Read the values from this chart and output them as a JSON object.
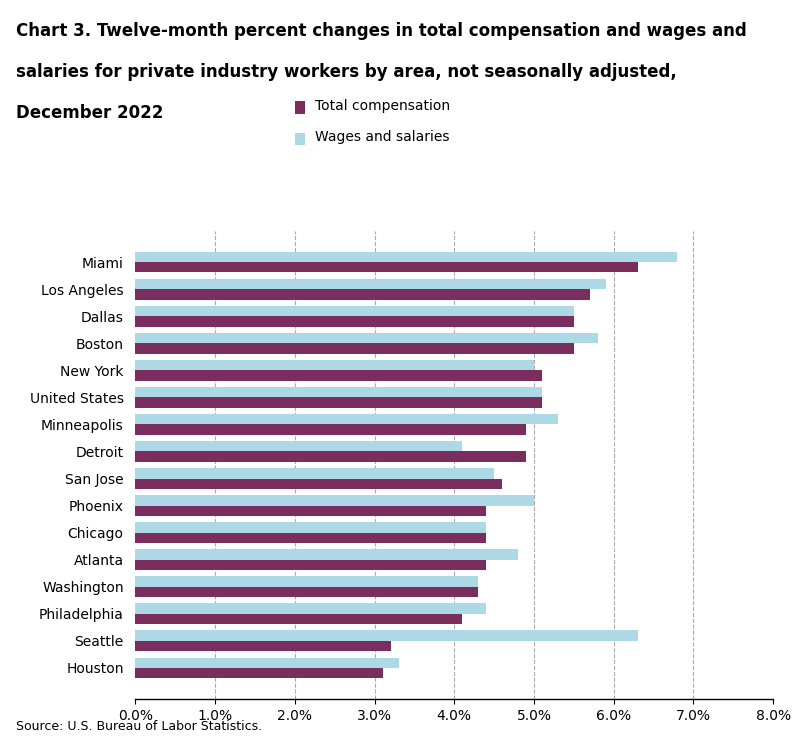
{
  "title_lines": [
    "Chart 3. Twelve-month percent changes in total compensation and wages and",
    "salaries for private industry workers by area, not seasonally adjusted,",
    "December 2022"
  ],
  "legend_labels": [
    "Total compensation",
    "Wages and salaries"
  ],
  "legend_colors": [
    "#7B2D5E",
    "#ADD8E6"
  ],
  "source": "Source: U.S. Bureau of Labor Statistics.",
  "categories": [
    "Miami",
    "Los Angeles",
    "Dallas",
    "Boston",
    "New York",
    "United States",
    "Minneapolis",
    "Detroit",
    "San Jose",
    "Phoenix",
    "Chicago",
    "Atlanta",
    "Washington",
    "Philadelphia",
    "Seattle",
    "Houston"
  ],
  "total_compensation": [
    6.3,
    5.7,
    5.5,
    5.5,
    5.1,
    5.1,
    4.9,
    4.9,
    4.6,
    4.4,
    4.4,
    4.4,
    4.3,
    4.1,
    3.2,
    3.1
  ],
  "wages_and_salaries": [
    6.8,
    5.9,
    5.5,
    5.8,
    5.0,
    5.1,
    5.3,
    4.1,
    4.5,
    5.0,
    4.4,
    4.8,
    4.3,
    4.4,
    6.3,
    3.3
  ],
  "xlim": [
    0.0,
    0.08
  ],
  "xticks": [
    0.0,
    0.01,
    0.02,
    0.03,
    0.04,
    0.05,
    0.06,
    0.07,
    0.08
  ],
  "xtick_labels": [
    "0.0%",
    "1.0%",
    "2.0%",
    "3.0%",
    "4.0%",
    "5.0%",
    "6.0%",
    "7.0%",
    "8.0%"
  ],
  "bar_color_tc": "#7B2D5E",
  "bar_color_ws": "#ADD8E6",
  "background_color": "#FFFFFF",
  "dashed_lines_x": [
    0.01,
    0.02,
    0.03,
    0.04,
    0.05,
    0.06,
    0.07
  ],
  "bar_height": 0.38,
  "figsize": [
    7.97,
    7.44
  ],
  "dpi": 100
}
